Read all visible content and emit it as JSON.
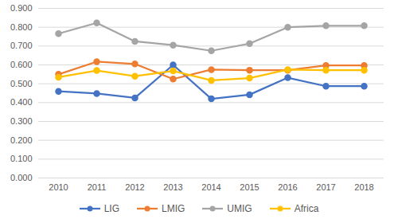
{
  "chart_data": {
    "type": "line",
    "categories": [
      "2010",
      "2011",
      "2012",
      "2013",
      "2014",
      "2015",
      "2016",
      "2017",
      "2018"
    ],
    "series": [
      {
        "name": "LIG",
        "color": "#4472c4",
        "values": [
          0.46,
          0.448,
          0.425,
          0.6,
          0.42,
          0.442,
          0.532,
          0.487,
          0.487
        ]
      },
      {
        "name": "LMIG",
        "color": "#ed7d31",
        "values": [
          0.55,
          0.617,
          0.605,
          0.525,
          0.575,
          0.572,
          0.572,
          0.597,
          0.597
        ]
      },
      {
        "name": "UMIG",
        "color": "#a5a5a5",
        "values": [
          0.766,
          0.823,
          0.725,
          0.705,
          0.675,
          0.713,
          0.8,
          0.808,
          0.808
        ]
      },
      {
        "name": "Africa",
        "color": "#ffc000",
        "values": [
          0.535,
          0.57,
          0.54,
          0.568,
          0.518,
          0.53,
          0.575,
          0.572,
          0.572
        ]
      }
    ],
    "ylim": [
      0,
      0.9
    ],
    "yticks": [
      {
        "value": 0,
        "label": "0.000"
      },
      {
        "value": 0.1,
        "label": "0.100"
      },
      {
        "value": 0.2,
        "label": "0.200"
      },
      {
        "value": 0.3,
        "label": "0.300"
      },
      {
        "value": 0.4,
        "label": "0.400"
      },
      {
        "value": 0.5,
        "label": "0.500"
      },
      {
        "value": 0.6,
        "label": "0.600"
      },
      {
        "value": 0.7,
        "label": "0.700"
      },
      {
        "value": 0.8,
        "label": "0.800"
      },
      {
        "value": 0.9,
        "label": "0.900"
      }
    ],
    "grid": true,
    "legend": "bottom",
    "marker": "circle"
  }
}
